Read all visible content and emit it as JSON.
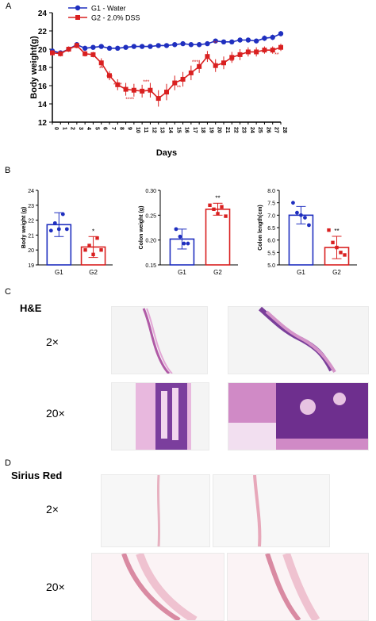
{
  "panels": {
    "a": "A",
    "b": "B",
    "c": "C",
    "d": "D"
  },
  "chart_data": [
    {
      "type": "line",
      "panel": "A",
      "xlabel": "Days",
      "ylabel": "Body weight(g)",
      "xlim": [
        0,
        28
      ],
      "ylim": [
        12,
        24
      ],
      "x": [
        0,
        1,
        2,
        3,
        4,
        5,
        6,
        7,
        8,
        9,
        10,
        11,
        12,
        13,
        14,
        15,
        16,
        17,
        18,
        19,
        20,
        21,
        22,
        23,
        24,
        25,
        26,
        27,
        28
      ],
      "yticks": [
        12,
        14,
        16,
        18,
        20,
        22,
        24
      ],
      "legend_position": "top-left",
      "series": [
        {
          "name": "G1 - Water",
          "color": "#1f2fbf",
          "marker": "circle",
          "values": [
            19.8,
            19.6,
            20.0,
            20.5,
            20.1,
            20.2,
            20.3,
            20.1,
            20.1,
            20.2,
            20.3,
            20.3,
            20.3,
            20.4,
            20.4,
            20.5,
            20.6,
            20.5,
            20.5,
            20.6,
            20.9,
            20.8,
            20.8,
            21.0,
            21.0,
            20.9,
            21.2,
            21.3,
            21.7
          ],
          "errors": [
            0.2,
            0.2,
            0.2,
            0.2,
            0.2,
            0.2,
            0.2,
            0.2,
            0.2,
            0.2,
            0.2,
            0.2,
            0.2,
            0.2,
            0.2,
            0.2,
            0.2,
            0.2,
            0.2,
            0.2,
            0.2,
            0.2,
            0.2,
            0.2,
            0.2,
            0.2,
            0.3,
            0.3,
            0.3
          ]
        },
        {
          "name": "G2 - 2.0% DSS",
          "color": "#d92020",
          "marker": "square",
          "values": [
            19.6,
            19.5,
            20.0,
            20.4,
            19.5,
            19.4,
            18.5,
            17.1,
            16.1,
            15.6,
            15.5,
            15.4,
            15.5,
            14.6,
            15.3,
            16.3,
            16.7,
            17.4,
            18.1,
            19.2,
            18.2,
            18.5,
            19.1,
            19.4,
            19.7,
            19.7,
            19.9,
            19.9,
            20.2
          ],
          "errors": [
            0.3,
            0.3,
            0.3,
            0.3,
            0.3,
            0.3,
            0.5,
            0.5,
            0.6,
            0.7,
            0.7,
            0.7,
            0.8,
            0.9,
            0.9,
            0.8,
            0.8,
            0.8,
            0.7,
            0.6,
            0.7,
            0.7,
            0.6,
            0.6,
            0.5,
            0.5,
            0.4,
            0.4,
            0.4
          ]
        }
      ],
      "annotations": [
        {
          "x": 6,
          "y": 17.7,
          "text": "**"
        },
        {
          "x": 7,
          "y": 16.8,
          "text": "***"
        },
        {
          "x": 8,
          "y": 15.9,
          "text": "****"
        },
        {
          "x": 9.5,
          "y": 14.3,
          "text": "****"
        },
        {
          "x": 11.5,
          "y": 16.2,
          "text": "***"
        },
        {
          "x": 15.5,
          "y": 15.6,
          "text": "**"
        },
        {
          "x": 17.5,
          "y": 18.4,
          "text": "***"
        },
        {
          "x": 20,
          "y": 20.5,
          "text": "**"
        },
        {
          "x": 22,
          "y": 18.5,
          "text": "**"
        },
        {
          "x": 27.5,
          "y": 19.2,
          "text": "**"
        }
      ]
    },
    {
      "type": "bar",
      "panel": "B",
      "ylabel": "Body weight (g)",
      "categories": [
        "G1",
        "G2"
      ],
      "values": [
        21.7,
        20.2
      ],
      "errors": [
        0.8,
        0.7
      ],
      "points": [
        [
          21.3,
          21.8,
          21.4,
          22.4,
          21.4
        ],
        [
          20.0,
          20.3,
          19.7,
          20.8,
          20.0
        ]
      ],
      "colors": [
        "#1f2fbf",
        "#d92020"
      ],
      "ylim": [
        19,
        24
      ],
      "yticks": [
        19,
        20,
        21,
        22,
        23,
        24
      ],
      "significance": [
        "",
        "*"
      ]
    },
    {
      "type": "bar",
      "panel": "B",
      "ylabel": "Colon weight (g)",
      "categories": [
        "G1",
        "G2"
      ],
      "values": [
        0.202,
        0.262
      ],
      "errors": [
        0.02,
        0.012
      ],
      "points": [
        [
          0.222,
          0.207,
          0.193,
          0.193
        ],
        [
          0.27,
          0.262,
          0.253,
          0.267,
          0.248
        ]
      ],
      "colors": [
        "#1f2fbf",
        "#d92020"
      ],
      "ylim": [
        0.15,
        0.3
      ],
      "yticks": [
        0.15,
        0.2,
        0.25,
        0.3
      ],
      "significance": [
        "",
        "**"
      ]
    },
    {
      "type": "bar",
      "panel": "B",
      "ylabel": "Colon length(cm)",
      "categories": [
        "G1",
        "G2"
      ],
      "values": [
        7.0,
        5.7
      ],
      "errors": [
        0.35,
        0.45
      ],
      "points": [
        [
          7.5,
          7.1,
          7.0,
          6.9,
          6.6
        ],
        [
          6.4,
          5.9,
          5.7,
          5.5,
          5.4
        ]
      ],
      "colors": [
        "#1f2fbf",
        "#d92020"
      ],
      "ylim": [
        5.0,
        8.0
      ],
      "yticks": [
        5.0,
        5.5,
        6.0,
        6.5,
        7.0,
        7.5,
        8.0
      ],
      "significance": [
        "",
        "**"
      ]
    }
  ],
  "histology_he": {
    "title": "H&E",
    "row1": "2×",
    "row2": "20×"
  },
  "histology_sirius": {
    "title": "Sirius Red",
    "row1": "2×",
    "row2": "20×"
  }
}
